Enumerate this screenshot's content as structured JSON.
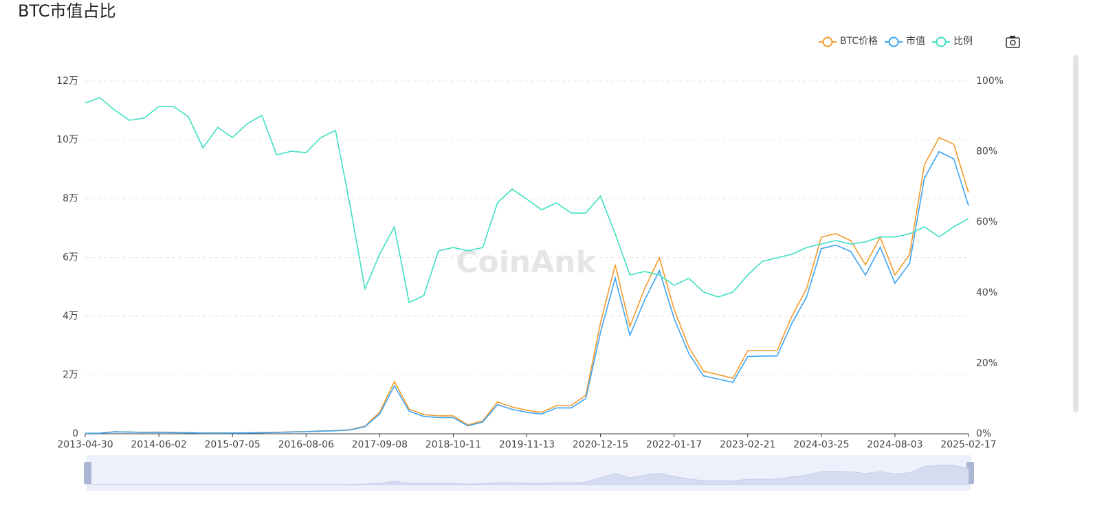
{
  "chart_data": {
    "type": "line",
    "title": "BTC市值占比",
    "watermark": "CoinAnk",
    "legend": "top-right",
    "grid": true,
    "categories": [
      "2013-04-30",
      null,
      null,
      null,
      null,
      "2014-06-02",
      null,
      null,
      null,
      null,
      "2015-07-05",
      null,
      null,
      null,
      null,
      "2016-08-06",
      null,
      null,
      null,
      null,
      "2017-09-08",
      null,
      null,
      null,
      null,
      "2018-10-11",
      null,
      null,
      null,
      null,
      "2019-11-13",
      null,
      null,
      null,
      null,
      "2020-12-15",
      null,
      null,
      null,
      null,
      "2022-01-17",
      null,
      null,
      null,
      null,
      "2023-02-21",
      null,
      null,
      null,
      null,
      "2024-03-25",
      null,
      null,
      null,
      null,
      "2024-08-03",
      null,
      null,
      null,
      null,
      "2025-02-17"
    ],
    "ylim": [
      0,
      120000
    ],
    "yticks": [
      0,
      {
        "value": 20000,
        "label": "2万"
      },
      {
        "value": 40000,
        "label": "4万"
      },
      {
        "value": 60000,
        "label": "6万"
      },
      {
        "value": 80000,
        "label": "8万"
      },
      {
        "value": 100000,
        "label": "10万"
      },
      {
        "value": 120000,
        "label": "12万"
      }
    ],
    "y2lim": [
      0,
      100
    ],
    "y2ticks": [
      {
        "value": 0,
        "label": "0%"
      },
      {
        "value": 20,
        "label": "20%"
      },
      {
        "value": 40,
        "label": "40%"
      },
      {
        "value": 60,
        "label": "60%"
      },
      {
        "value": 80,
        "label": "80%"
      },
      {
        "value": 100,
        "label": "100%"
      }
    ],
    "series": [
      {
        "name": "BTC价格",
        "color": "#f39a2b",
        "values": [
          140,
          200,
          700,
          600,
          500,
          550,
          450,
          350,
          250,
          250,
          280,
          300,
          400,
          500,
          650,
          750,
          950,
          1100,
          1400,
          2600,
          7300,
          17800,
          8400,
          6500,
          6100,
          6100,
          3000,
          4400,
          10800,
          9100,
          8000,
          7300,
          9600,
          9600,
          13100,
          37700,
          57500,
          36500,
          49400,
          59900,
          42300,
          29500,
          21300,
          20100,
          18900,
          28300,
          28300,
          28300,
          40000,
          49400,
          66900,
          68100,
          65700,
          57500,
          66900,
          54000,
          61000,
          91500,
          100800,
          98500,
          82100
        ]
      },
      {
        "name": "市值",
        "color": "#3ba4f2",
        "values": [
          130,
          190,
          650,
          560,
          470,
          520,
          420,
          330,
          240,
          240,
          260,
          280,
          370,
          460,
          600,
          700,
          880,
          1000,
          1300,
          2400,
          6700,
          16300,
          7700,
          5900,
          5500,
          5500,
          2700,
          4000,
          9900,
          8300,
          7300,
          6700,
          8800,
          8800,
          12000,
          34500,
          53000,
          33500,
          45500,
          55500,
          39200,
          27300,
          19700,
          18600,
          17500,
          26300,
          26400,
          26500,
          37600,
          46500,
          63000,
          64200,
          62000,
          54000,
          63500,
          51200,
          58000,
          87000,
          96000,
          93500,
          77600
        ]
      },
      {
        "name": "比例",
        "color": "#3ee0c2",
        "axis": "y2",
        "values": [
          93.8,
          95.3,
          91.8,
          88.9,
          89.5,
          92.8,
          92.8,
          89.9,
          81.1,
          86.9,
          84.0,
          87.9,
          90.3,
          79.1,
          80.1,
          79.7,
          84.0,
          86.0,
          64.5,
          41.1,
          50.9,
          58.7,
          37.2,
          39.2,
          51.9,
          52.8,
          51.9,
          52.8,
          65.5,
          69.4,
          66.5,
          63.5,
          65.5,
          62.6,
          62.6,
          67.4,
          56.7,
          45.0,
          46.0,
          45.0,
          42.1,
          44.1,
          40.2,
          38.8,
          40.2,
          45.0,
          48.9,
          49.9,
          50.9,
          52.8,
          53.8,
          54.8,
          53.8,
          54.4,
          55.8,
          55.8,
          56.7,
          58.7,
          55.8,
          58.7,
          61.0
        ]
      }
    ]
  }
}
